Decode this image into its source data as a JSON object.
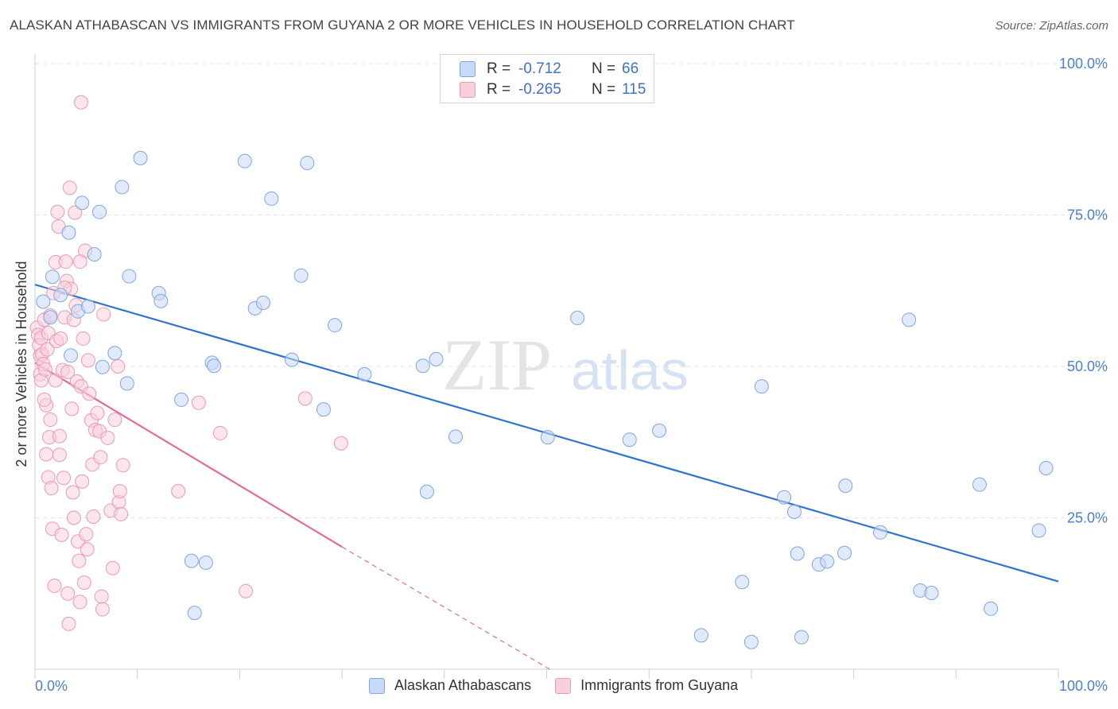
{
  "title": "ALASKAN ATHABASCAN VS IMMIGRANTS FROM GUYANA 2 OR MORE VEHICLES IN HOUSEHOLD CORRELATION CHART",
  "source": "Source: ZipAtlas.com",
  "watermark": {
    "zip": "ZIP",
    "atlas": "atlas"
  },
  "stats_legend": [
    {
      "r_label": "R =",
      "r_value": "-0.712",
      "n_label": "N =",
      "n_value": "66",
      "color": "#4a7fd4"
    },
    {
      "r_label": "R =",
      "r_value": "-0.265",
      "n_label": "N =",
      "n_value": "115",
      "color": "#e8759d"
    }
  ],
  "colors": {
    "blue_fill": "#c6d9f7",
    "blue_stroke": "#7fa6e3",
    "blue_line": "#2f72d0",
    "pink_fill": "#f9cfdc",
    "pink_stroke": "#ec9ab3",
    "pink_line": "#e66a93",
    "tick_label": "#4a7fd4",
    "grid": "#e3e3e3"
  },
  "chart_data": {
    "type": "scatter",
    "title": "ALASKAN ATHABASCAN VS IMMIGRANTS FROM GUYANA 2 OR MORE VEHICLES IN HOUSEHOLD CORRELATION CHART",
    "xlabel": "",
    "ylabel": "2 or more Vehicles in Household",
    "xlim": [
      0,
      100
    ],
    "ylim": [
      0,
      100
    ],
    "x_tick_labels": [
      "0.0%",
      "100.0%"
    ],
    "y_ticks": [
      25,
      50,
      75,
      100
    ],
    "y_tick_labels": [
      "25.0%",
      "50.0%",
      "75.0%",
      "100.0%"
    ],
    "grid": true,
    "legend": "bottom",
    "series": [
      {
        "name": "Alaskan Athabascans",
        "trend": {
          "x": [
            0,
            100
          ],
          "y": [
            63.5,
            14.5
          ],
          "dashed_to": null
        },
        "points": [
          [
            0.8,
            60.7
          ],
          [
            1.5,
            58.1
          ],
          [
            1.7,
            64.8
          ],
          [
            2.5,
            61.8
          ],
          [
            3.3,
            72.1
          ],
          [
            3.5,
            51.8
          ],
          [
            4.2,
            59.1
          ],
          [
            4.6,
            77.0
          ],
          [
            5.2,
            59.9
          ],
          [
            5.8,
            68.5
          ],
          [
            6.3,
            75.5
          ],
          [
            6.6,
            49.9
          ],
          [
            7.8,
            52.2
          ],
          [
            8.5,
            79.6
          ],
          [
            9.0,
            47.2
          ],
          [
            9.2,
            64.9
          ],
          [
            10.3,
            84.4
          ],
          [
            12.1,
            62.1
          ],
          [
            12.3,
            60.8
          ],
          [
            14.3,
            44.5
          ],
          [
            15.3,
            17.9
          ],
          [
            15.6,
            9.3
          ],
          [
            16.7,
            17.6
          ],
          [
            17.3,
            50.6
          ],
          [
            17.5,
            50.1
          ],
          [
            20.5,
            83.9
          ],
          [
            21.5,
            59.6
          ],
          [
            22.3,
            60.5
          ],
          [
            23.1,
            77.7
          ],
          [
            25.1,
            51.1
          ],
          [
            26.0,
            65.0
          ],
          [
            26.6,
            83.6
          ],
          [
            28.2,
            42.9
          ],
          [
            29.3,
            56.8
          ],
          [
            32.2,
            48.7
          ],
          [
            37.9,
            50.1
          ],
          [
            38.3,
            29.3
          ],
          [
            39.2,
            51.2
          ],
          [
            41.1,
            38.4
          ],
          [
            50.1,
            38.3
          ],
          [
            53.0,
            58.0
          ],
          [
            58.1,
            37.9
          ],
          [
            61.0,
            39.4
          ],
          [
            65.1,
            5.6
          ],
          [
            69.1,
            14.4
          ],
          [
            70.0,
            4.5
          ],
          [
            71.0,
            46.7
          ],
          [
            73.2,
            28.4
          ],
          [
            74.2,
            26.0
          ],
          [
            74.5,
            19.1
          ],
          [
            74.9,
            5.3
          ],
          [
            76.6,
            17.3
          ],
          [
            77.4,
            17.8
          ],
          [
            79.1,
            19.2
          ],
          [
            79.2,
            30.3
          ],
          [
            82.6,
            22.6
          ],
          [
            85.4,
            57.7
          ],
          [
            86.5,
            13.0
          ],
          [
            87.6,
            12.6
          ],
          [
            92.3,
            30.5
          ],
          [
            93.4,
            10.0
          ],
          [
            98.1,
            22.9
          ],
          [
            98.8,
            33.2
          ]
        ]
      },
      {
        "name": "Immigrants from Guyana",
        "trend": {
          "x": [
            0,
            30
          ],
          "y": [
            50.6,
            20.2
          ],
          "dashed_to": [
            50.3,
            0
          ]
        },
        "points": [
          [
            0.2,
            56.4
          ],
          [
            0.3,
            55.2
          ],
          [
            0.4,
            53.5
          ],
          [
            0.5,
            51.8
          ],
          [
            0.5,
            48.7
          ],
          [
            0.6,
            54.7
          ],
          [
            0.6,
            47.7
          ],
          [
            0.7,
            52.0
          ],
          [
            0.8,
            50.4
          ],
          [
            0.9,
            57.7
          ],
          [
            1.0,
            49.5
          ],
          [
            1.1,
            43.6
          ],
          [
            1.1,
            35.5
          ],
          [
            1.2,
            52.8
          ],
          [
            1.3,
            31.7
          ],
          [
            1.3,
            55.5
          ],
          [
            1.4,
            38.3
          ],
          [
            1.5,
            58.4
          ],
          [
            1.6,
            29.9
          ],
          [
            1.7,
            23.2
          ],
          [
            1.8,
            62.1
          ],
          [
            1.9,
            13.8
          ],
          [
            2.0,
            67.2
          ],
          [
            2.0,
            47.7
          ],
          [
            2.1,
            54.2
          ],
          [
            2.2,
            75.5
          ],
          [
            2.3,
            73.1
          ],
          [
            2.4,
            38.5
          ],
          [
            2.4,
            35.4
          ],
          [
            2.5,
            54.6
          ],
          [
            2.6,
            22.2
          ],
          [
            2.7,
            49.4
          ],
          [
            2.8,
            31.6
          ],
          [
            2.9,
            58.1
          ],
          [
            3.0,
            67.3
          ],
          [
            3.1,
            64.1
          ],
          [
            3.2,
            12.5
          ],
          [
            3.3,
            7.5
          ],
          [
            3.4,
            79.5
          ],
          [
            3.5,
            62.8
          ],
          [
            3.6,
            43.0
          ],
          [
            3.7,
            29.2
          ],
          [
            3.8,
            57.7
          ],
          [
            3.8,
            25.0
          ],
          [
            3.9,
            75.4
          ],
          [
            4.0,
            60.1
          ],
          [
            4.1,
            47.5
          ],
          [
            4.2,
            21.1
          ],
          [
            4.3,
            17.9
          ],
          [
            4.4,
            11.1
          ],
          [
            4.5,
            93.6
          ],
          [
            4.5,
            46.7
          ],
          [
            4.6,
            31.0
          ],
          [
            4.7,
            54.6
          ],
          [
            4.8,
            14.3
          ],
          [
            4.9,
            69.1
          ],
          [
            5.0,
            22.3
          ],
          [
            5.1,
            19.8
          ],
          [
            5.2,
            51.0
          ],
          [
            5.3,
            45.5
          ],
          [
            5.5,
            41.1
          ],
          [
            5.6,
            33.8
          ],
          [
            5.7,
            25.2
          ],
          [
            5.9,
            39.5
          ],
          [
            6.1,
            42.3
          ],
          [
            6.3,
            39.3
          ],
          [
            6.4,
            35.0
          ],
          [
            6.5,
            12.0
          ],
          [
            6.6,
            9.9
          ],
          [
            6.7,
            58.6
          ],
          [
            7.1,
            38.2
          ],
          [
            7.4,
            26.2
          ],
          [
            7.6,
            16.7
          ],
          [
            7.8,
            41.2
          ],
          [
            8.1,
            50.0
          ],
          [
            8.2,
            27.6
          ],
          [
            8.3,
            29.4
          ],
          [
            8.4,
            25.6
          ],
          [
            8.6,
            33.7
          ],
          [
            14.0,
            29.4
          ],
          [
            16.0,
            44.0
          ],
          [
            18.1,
            39.0
          ],
          [
            20.6,
            12.9
          ],
          [
            26.4,
            44.7
          ],
          [
            29.9,
            37.3
          ],
          [
            1.5,
            41.2
          ],
          [
            2.9,
            63.0
          ],
          [
            3.2,
            49.1
          ],
          [
            0.9,
            44.5
          ],
          [
            4.4,
            67.3
          ]
        ]
      }
    ]
  }
}
